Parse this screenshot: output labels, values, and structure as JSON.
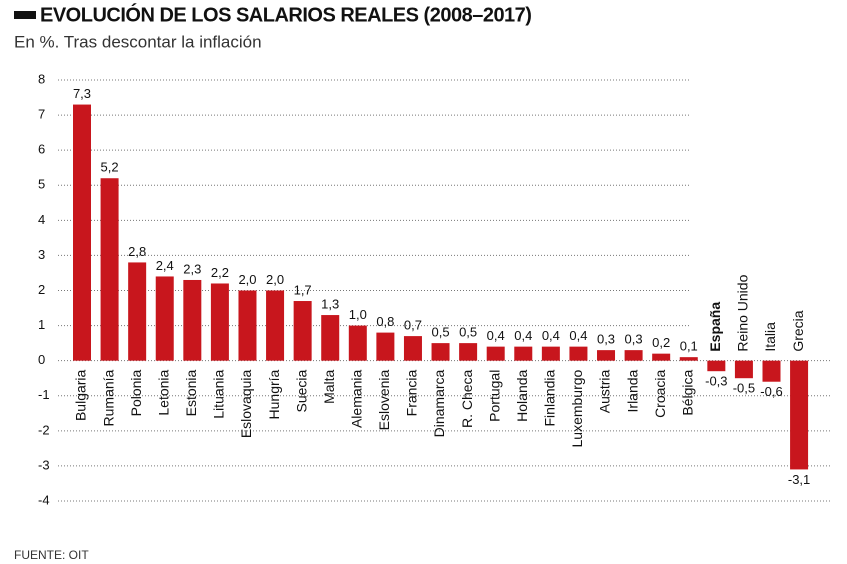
{
  "chart_data": {
    "type": "bar",
    "title": "EVOLUCIÓN DE LOS SALARIOS REALES (2008–2017)",
    "subtitle": "En %. Tras descontar la inflación",
    "source": "FUENTE: OIT",
    "categories": [
      "Bulgaria",
      "Rumanía",
      "Polonia",
      "Letonia",
      "Estonia",
      "Lituania",
      "Eslovaquia",
      "Hungría",
      "Suecia",
      "Malta",
      "Alemania",
      "Eslovenia",
      "Francia",
      "Dinamarca",
      "R. Checa",
      "Portugal",
      "Holanda",
      "Finlandia",
      "Luxemburgo",
      "Austria",
      "Irlanda",
      "Croacia",
      "Bélgica",
      "España",
      "Reino Unido",
      "Italia",
      "Grecia"
    ],
    "values": [
      7.3,
      5.2,
      2.8,
      2.4,
      2.3,
      2.2,
      2.0,
      2.0,
      1.7,
      1.3,
      1.0,
      0.8,
      0.7,
      0.5,
      0.5,
      0.4,
      0.4,
      0.4,
      0.4,
      0.3,
      0.3,
      0.2,
      0.1,
      -0.3,
      -0.5,
      -0.6,
      -3.1
    ],
    "value_labels": [
      "7,3",
      "5,2",
      "2,8",
      "2,4",
      "2,3",
      "2,2",
      "2,0",
      "2,0",
      "1,7",
      "1,3",
      "1,0",
      "0,8",
      "0,7",
      "0,5",
      "0,5",
      "0,4",
      "0,4",
      "0,4",
      "0,4",
      "0,3",
      "0,3",
      "0,2",
      "0,1",
      "-0,3",
      "-0,5",
      "-0,6",
      "-3,1"
    ],
    "color": "#c8161d",
    "ylim": [
      -4,
      8
    ],
    "yticks": [
      8,
      7,
      6,
      5,
      4,
      3,
      2,
      1,
      0,
      -1,
      -2,
      -3,
      -4
    ],
    "grid": true
  }
}
